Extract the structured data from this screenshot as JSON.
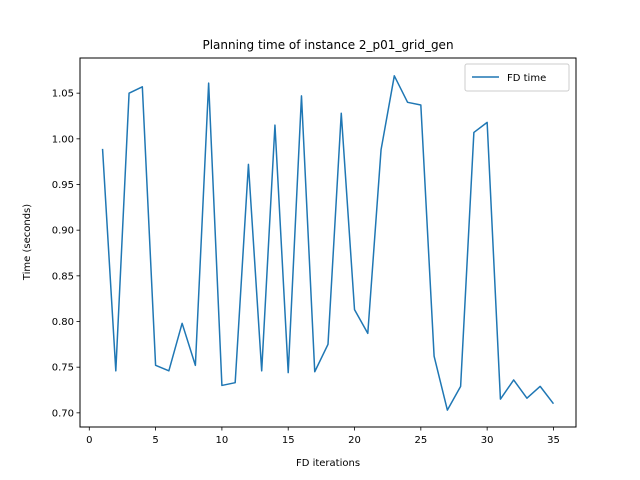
{
  "chart_data": {
    "type": "line",
    "title": "Planning time of instance 2_p01_grid_gen",
    "xlabel": "FD iterations",
    "ylabel": "Time (seconds)",
    "xlim": [
      -0.7,
      36.7
    ],
    "ylim": [
      0.6845,
      1.0885
    ],
    "xticks": [
      0,
      5,
      10,
      15,
      20,
      25,
      30,
      35
    ],
    "yticks": [
      0.7,
      0.75,
      0.8,
      0.85,
      0.9,
      0.95,
      1.0,
      1.05
    ],
    "ytick_labels": [
      "0.70",
      "0.75",
      "0.80",
      "0.85",
      "0.90",
      "0.95",
      "1.00",
      "1.05"
    ],
    "grid": false,
    "legend_position": "top-right",
    "series": [
      {
        "name": "FD time",
        "color": "#1f77b4",
        "x": [
          1,
          2,
          3,
          4,
          5,
          6,
          7,
          8,
          9,
          10,
          11,
          12,
          13,
          14,
          15,
          16,
          17,
          18,
          19,
          20,
          21,
          22,
          23,
          24,
          25,
          26,
          27,
          28,
          29,
          30,
          31,
          32,
          33,
          34,
          35
        ],
        "y": [
          0.989,
          0.746,
          1.05,
          1.057,
          0.752,
          0.746,
          0.798,
          0.752,
          1.061,
          0.73,
          0.733,
          0.972,
          0.746,
          1.015,
          0.744,
          1.047,
          0.745,
          0.775,
          1.028,
          0.813,
          0.787,
          0.988,
          1.069,
          1.04,
          1.037,
          0.762,
          0.703,
          0.729,
          1.007,
          1.018,
          0.715,
          0.736,
          0.716,
          0.729,
          0.71
        ]
      }
    ]
  }
}
